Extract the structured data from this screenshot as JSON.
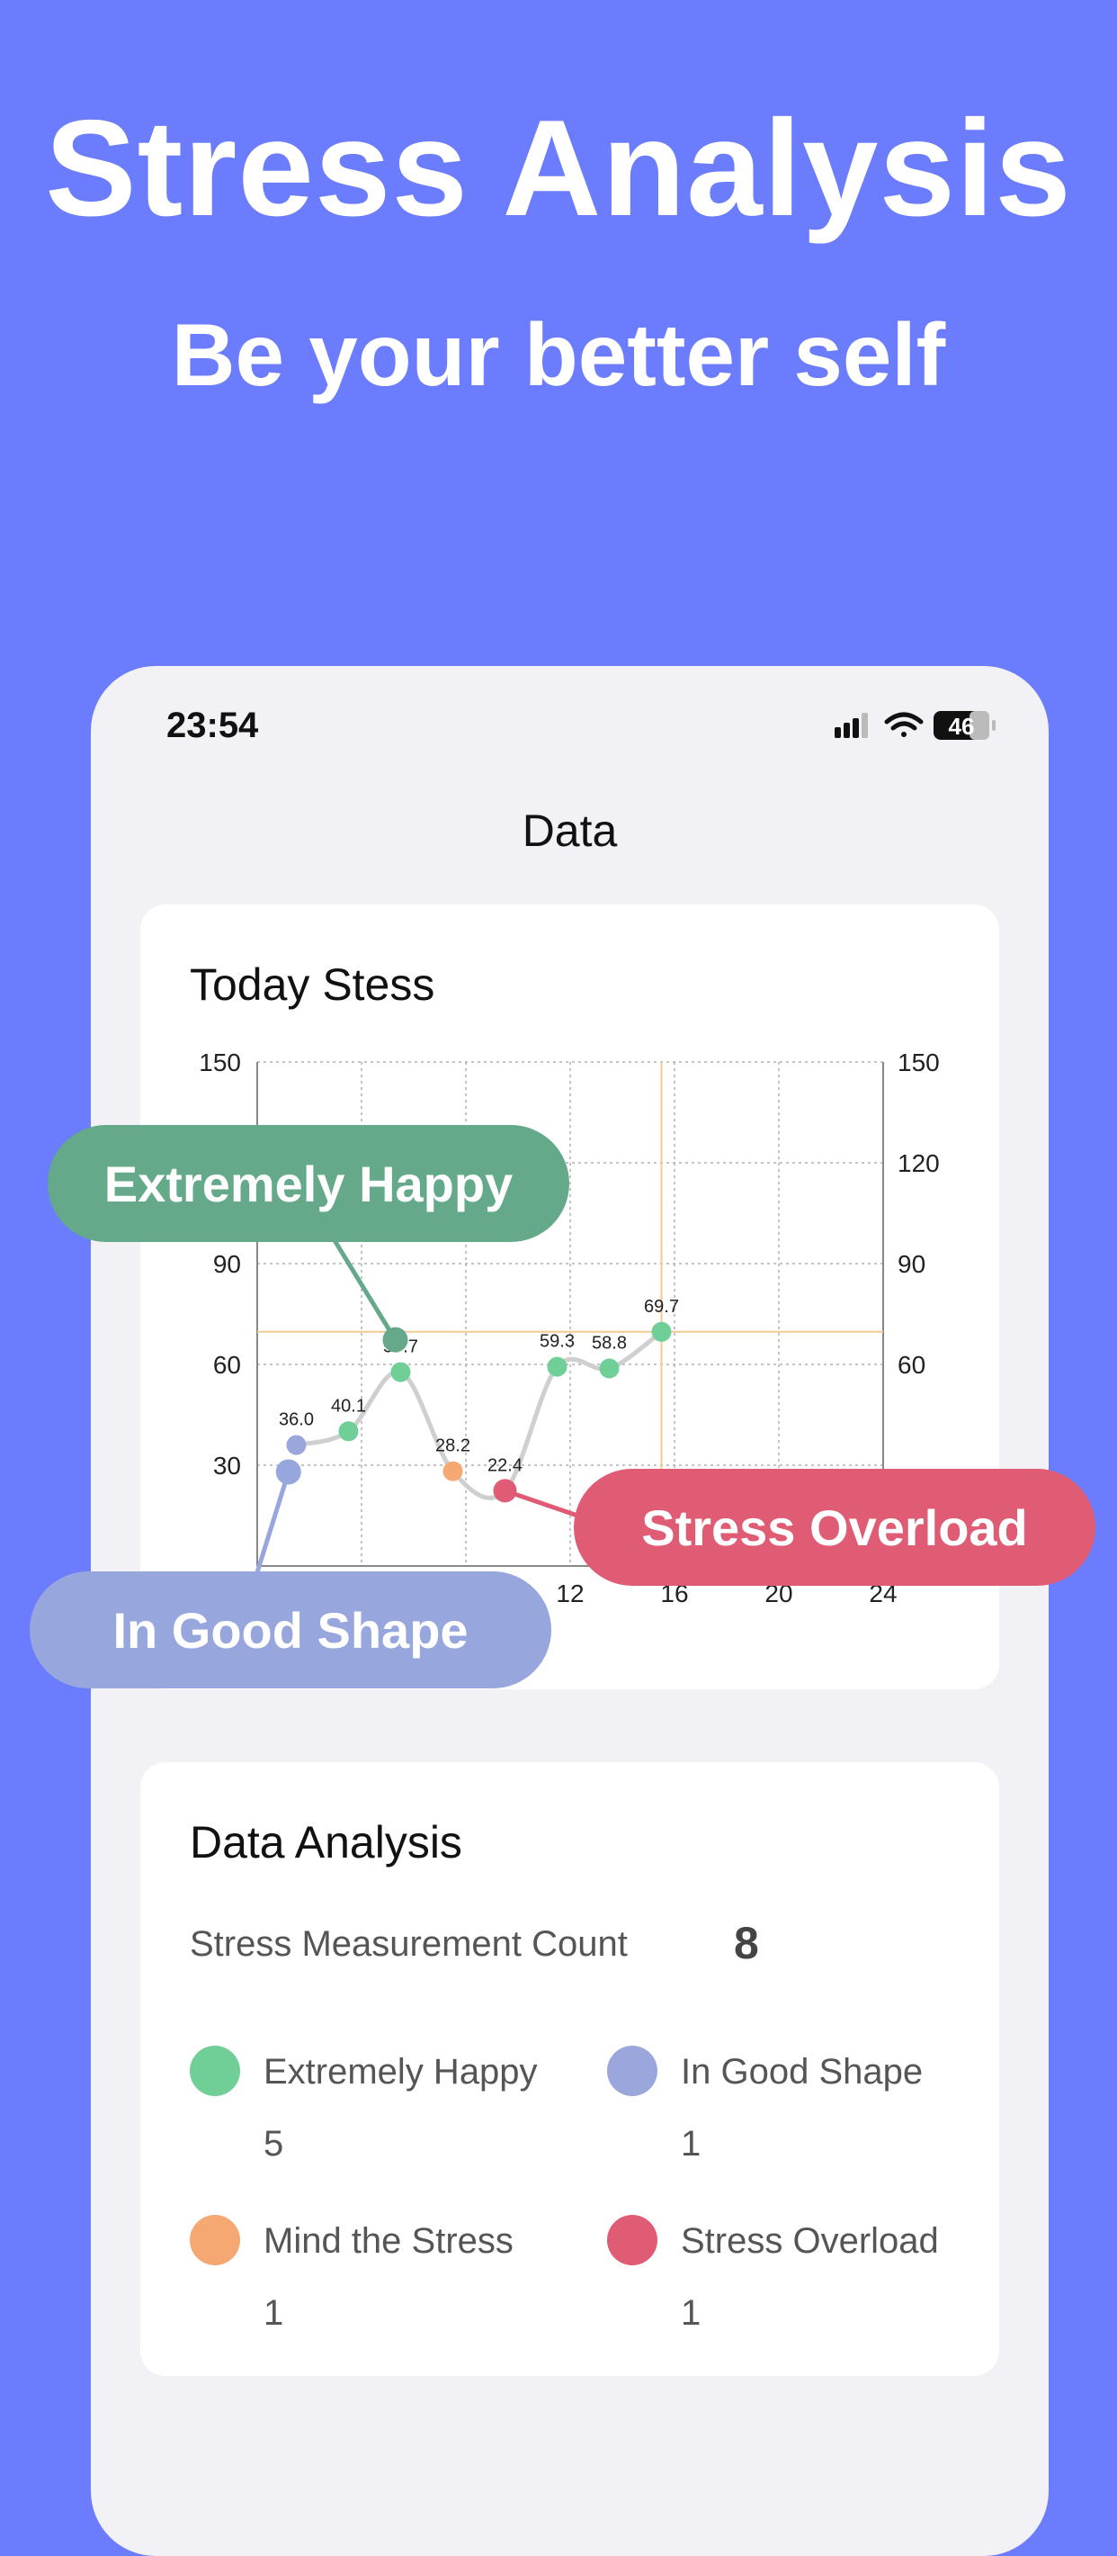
{
  "hero": {
    "title": "Stress Analysis",
    "subtitle": "Be your better self"
  },
  "status": {
    "time": "23:54",
    "battery": "46"
  },
  "nav": {
    "title": "Data"
  },
  "stress_card": {
    "title": "Today Stess"
  },
  "chart_data": {
    "type": "line",
    "xlim": [
      0,
      24
    ],
    "ylim": [
      0,
      150
    ],
    "x_ticks": [
      "12",
      "16",
      "20",
      "24"
    ],
    "y_ticks_left": [
      "150",
      "90",
      "60",
      "30"
    ],
    "y_ticks_right": [
      "150",
      "120",
      "90",
      "60"
    ],
    "points": [
      {
        "x": 1.2,
        "y": 28,
        "label": "",
        "color": "#9aa6dc"
      },
      {
        "x": 1.5,
        "y": 36.0,
        "label": "36.0",
        "color": "#9aa6dc"
      },
      {
        "x": 3.5,
        "y": 40.1,
        "label": "40.1",
        "color": "#6fcf97"
      },
      {
        "x": 5.5,
        "y": 57.7,
        "label": "57.7",
        "color": "#6fcf97"
      },
      {
        "x": 7.5,
        "y": 28.2,
        "label": "28.2",
        "color": "#f5a872"
      },
      {
        "x": 9.5,
        "y": 22.4,
        "label": "22.4",
        "color": "#e05c75"
      },
      {
        "x": 11.5,
        "y": 59.3,
        "label": "59.3",
        "color": "#6fcf97"
      },
      {
        "x": 13.5,
        "y": 58.8,
        "label": "58.8",
        "color": "#6fcf97"
      },
      {
        "x": 15.5,
        "y": 69.7,
        "label": "69.7",
        "color": "#6fcf97"
      }
    ],
    "crosshair": {
      "x": 15.5,
      "y": 69.7
    },
    "line_color": "#cfcfcf",
    "grid": true
  },
  "callouts": {
    "happy": {
      "label": "Extremely Happy",
      "color": "#63a98a"
    },
    "overload": {
      "label": "Stress Overload",
      "color": "#e05c75"
    },
    "good": {
      "label": "In Good Shape",
      "color": "#97a6dc"
    }
  },
  "analysis": {
    "title": "Data Analysis",
    "count_label": "Stress Measurement Count",
    "count_value": "8",
    "legend": [
      {
        "name": "Extremely Happy",
        "count": "5",
        "color": "#6fcf97"
      },
      {
        "name": "In Good Shape",
        "count": "1",
        "color": "#9aa6dc"
      },
      {
        "name": "Mind the Stress",
        "count": "1",
        "color": "#f5a872"
      },
      {
        "name": "Stress Overload",
        "count": "1",
        "color": "#e05c75"
      }
    ]
  }
}
